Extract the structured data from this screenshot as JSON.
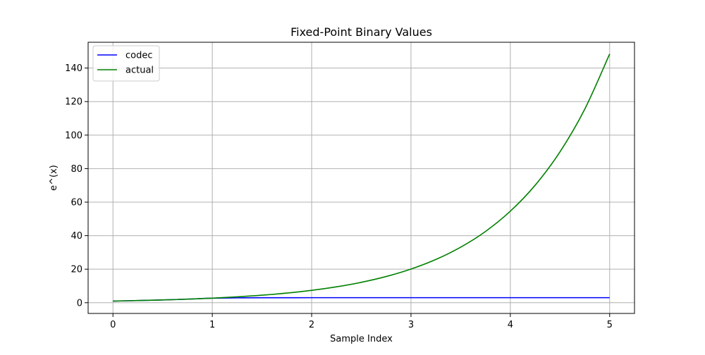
{
  "chart_data": {
    "type": "line",
    "title": "Fixed-Point Binary Values",
    "xlabel": "Sample Index",
    "ylabel": "e^(x)",
    "xlim": [
      -0.25,
      5.25
    ],
    "ylim": [
      -6.4,
      155.4
    ],
    "x_ticks": [
      0,
      1,
      2,
      3,
      4,
      5
    ],
    "x_tick_labels": [
      "0",
      "1",
      "2",
      "3",
      "4",
      "5"
    ],
    "y_ticks": [
      0,
      20,
      40,
      60,
      80,
      100,
      120,
      140
    ],
    "y_tick_labels": [
      "0",
      "20",
      "40",
      "60",
      "80",
      "100",
      "120",
      "140"
    ],
    "grid": true,
    "legend_position": "top-left",
    "series": [
      {
        "name": "codec",
        "color": "#0000ff",
        "x": [
          0,
          0.25,
          0.5,
          0.75,
          1,
          1.25,
          1.5,
          2,
          2.5,
          3,
          3.5,
          4,
          4.5,
          5
        ],
        "y": [
          1.0,
          1.28,
          1.65,
          2.12,
          2.72,
          2.9,
          2.98,
          3.0,
          3.0,
          3.0,
          3.0,
          3.0,
          3.0,
          3.0
        ]
      },
      {
        "name": "actual",
        "color": "#008000",
        "x": [
          0,
          0.25,
          0.5,
          0.75,
          1,
          1.25,
          1.5,
          1.75,
          2,
          2.25,
          2.5,
          2.75,
          3,
          3.25,
          3.5,
          3.75,
          4,
          4.25,
          4.5,
          4.75,
          5
        ],
        "y": [
          1.0,
          1.28,
          1.65,
          2.12,
          2.72,
          3.49,
          4.48,
          5.75,
          7.39,
          9.49,
          12.18,
          15.64,
          20.09,
          25.79,
          33.12,
          42.52,
          54.6,
          70.11,
          90.02,
          115.58,
          148.41
        ]
      }
    ]
  }
}
